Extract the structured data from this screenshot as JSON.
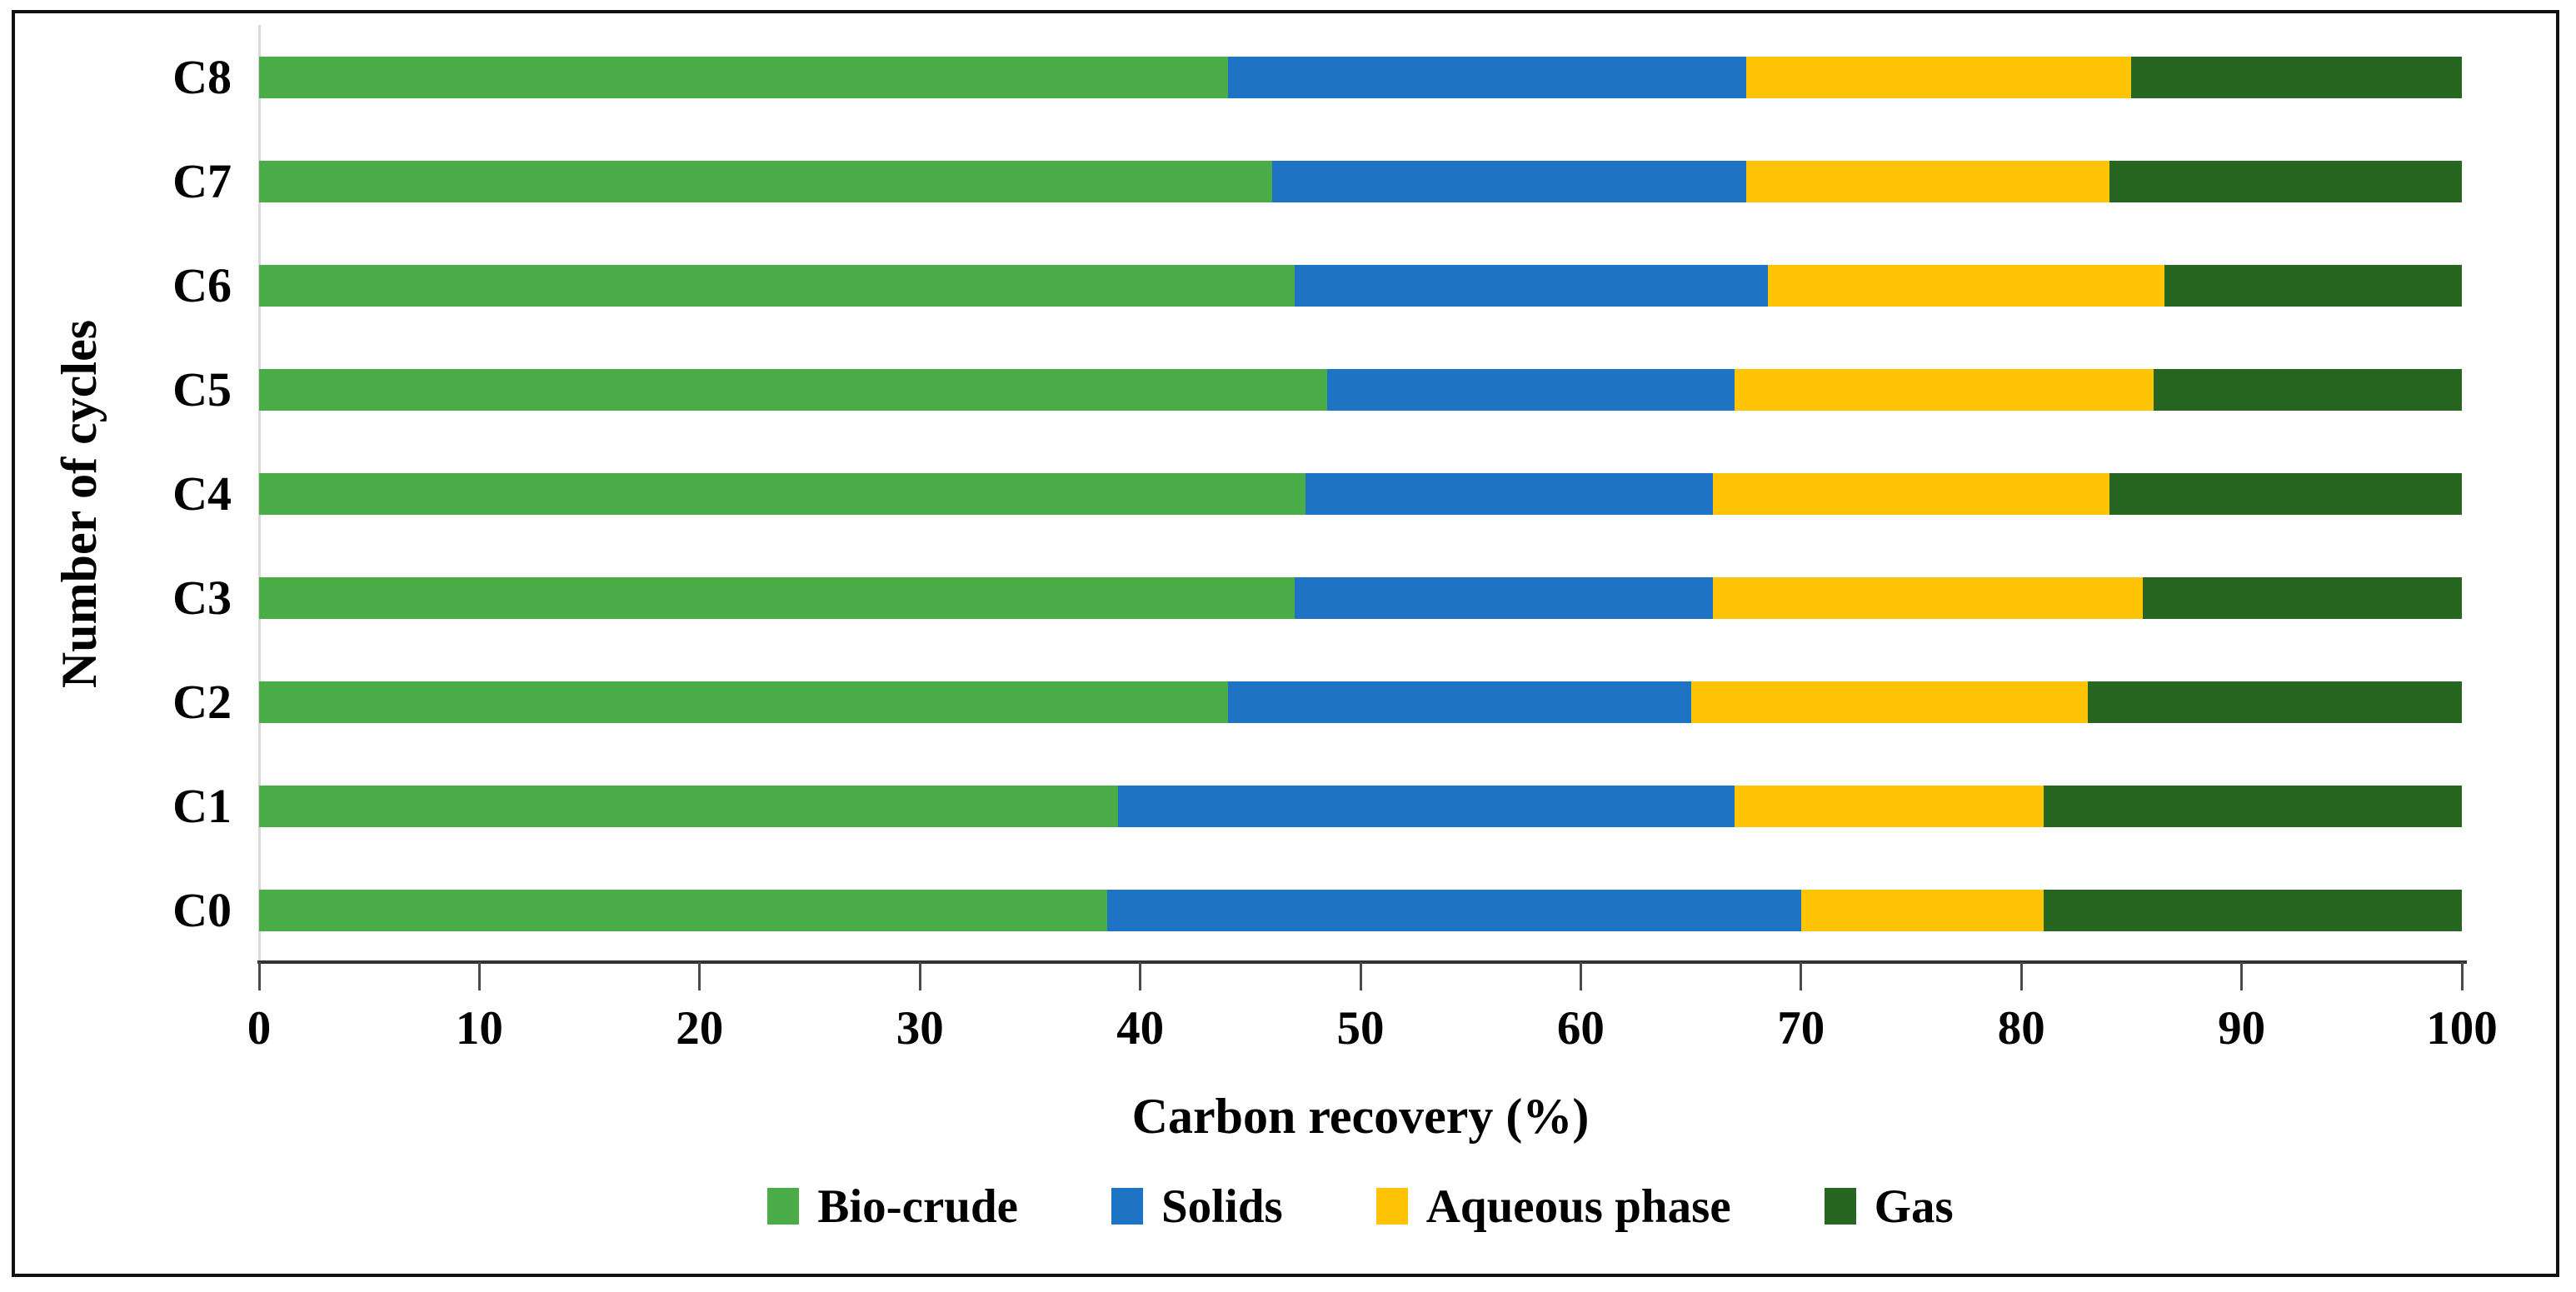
{
  "chart_data": {
    "type": "bar",
    "orientation": "horizontal",
    "stacked": true,
    "categories": [
      "C0",
      "C1",
      "C2",
      "C3",
      "C4",
      "C5",
      "C6",
      "C7",
      "C8"
    ],
    "category_display_order": "C8 at top, C0 at bottom",
    "series": [
      {
        "name": "Bio-crude",
        "color": "#4bad47",
        "values": [
          38.5,
          39,
          44,
          47,
          47.5,
          48.5,
          47,
          46,
          44
        ]
      },
      {
        "name": "Solids",
        "color": "#1f73c4",
        "values": [
          31.5,
          28,
          21,
          19,
          18.5,
          18.5,
          21.5,
          21.5,
          23.5
        ]
      },
      {
        "name": "Aqueous phase",
        "color": "#fec405",
        "values": [
          11,
          14,
          18,
          19.5,
          18,
          19,
          18,
          16.5,
          17.5
        ]
      },
      {
        "name": "Gas",
        "color": "#276621",
        "values": [
          19,
          19,
          17,
          14.5,
          16,
          14,
          13.5,
          16,
          15
        ]
      }
    ],
    "xlabel": "Carbon recovery (%)",
    "ylabel": "Number of cycles",
    "xlim": [
      0,
      100
    ],
    "xticks": [
      0,
      10,
      20,
      30,
      40,
      50,
      60,
      70,
      80,
      90,
      100
    ],
    "bar_total": 100,
    "grid": false,
    "legend_position": "bottom"
  },
  "colors": {
    "frame_border": "#111111",
    "x_axis_line": "#333333",
    "tick_mark": "#4a4a4a",
    "category_axis_line": "#d9d9d9",
    "text": "#000000",
    "background": "#ffffff"
  }
}
